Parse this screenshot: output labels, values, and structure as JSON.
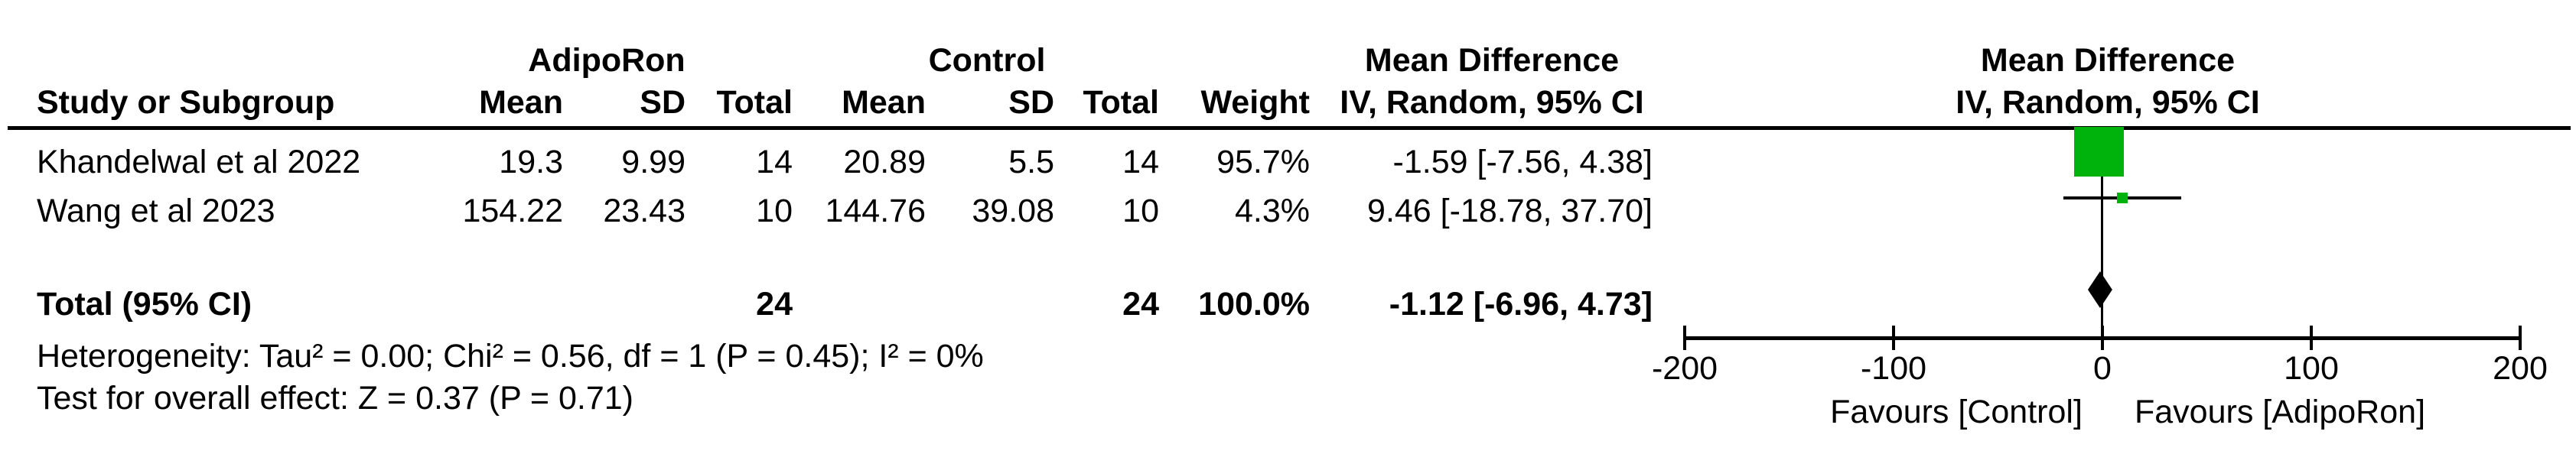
{
  "figure": {
    "group_headers": {
      "treatment": "AdipoRon",
      "control": "Control",
      "md_table_line1": "Mean Difference",
      "md_plot_line1": "Mean Difference",
      "md_plot_line2": "IV, Random, 95% CI"
    },
    "columns": {
      "study": "Study or Subgroup",
      "mean": "Mean",
      "sd": "SD",
      "total": "Total",
      "mean2": "Mean",
      "sd2": "SD",
      "total2": "Total",
      "weight": "Weight",
      "ci": "IV, Random, 95% CI"
    },
    "rows": [
      {
        "study": "Khandelwal et al 2022",
        "mean1": "19.3",
        "sd1": "9.99",
        "total1": "14",
        "mean2": "20.89",
        "sd2": "5.5",
        "total2": "14",
        "weight": "95.7%",
        "ci_text": "-1.59 [-7.56, 4.38]"
      },
      {
        "study": "Wang et al 2023",
        "mean1": "154.22",
        "sd1": "23.43",
        "total1": "10",
        "mean2": "144.76",
        "sd2": "39.08",
        "total2": "10",
        "weight": "4.3%",
        "ci_text": "9.46 [-18.78, 37.70]"
      }
    ],
    "total_row": {
      "label": "Total (95% CI)",
      "total1": "24",
      "total2": "24",
      "weight": "100.0%",
      "ci_text": "-1.12 [-6.96, 4.73]"
    },
    "heterogeneity": "Heterogeneity: Tau² = 0.00; Chi² = 0.56, df = 1 (P = 0.45); I² = 0%",
    "overall_effect": "Test for overall effect: Z = 0.37 (P = 0.71)",
    "axis": {
      "favours_left": "Favours [Control]",
      "favours_right": "Favours [AdipoRon]"
    },
    "colors": {
      "marker_green": "#00b20c",
      "diamond_black": "#000000",
      "line_black": "#000000"
    }
  },
  "chart_data": {
    "type": "forest",
    "effect_measure": "Mean Difference",
    "model": "IV, Random, 95% CI",
    "xlim": [
      -200,
      200
    ],
    "ticks": [
      -200,
      -100,
      0,
      100,
      200
    ],
    "zero_line": 0,
    "studies": [
      {
        "name": "Khandelwal et al 2022",
        "md": -1.59,
        "ci_low": -7.56,
        "ci_high": 4.38,
        "weight_pct": 95.7
      },
      {
        "name": "Wang et al 2023",
        "md": 9.46,
        "ci_low": -18.78,
        "ci_high": 37.7,
        "weight_pct": 4.3
      }
    ],
    "total": {
      "name": "Total (95% CI)",
      "md": -1.12,
      "ci_low": -6.96,
      "ci_high": 4.73,
      "weight_pct": 100.0
    },
    "heterogeneity": {
      "tau2": 0.0,
      "chi2": 0.56,
      "df": 1,
      "p": 0.45,
      "i2_pct": 0
    },
    "overall_effect": {
      "z": 0.37,
      "p": 0.71
    },
    "favours_left": "Favours [Control]",
    "favours_right": "Favours [AdipoRon]"
  }
}
